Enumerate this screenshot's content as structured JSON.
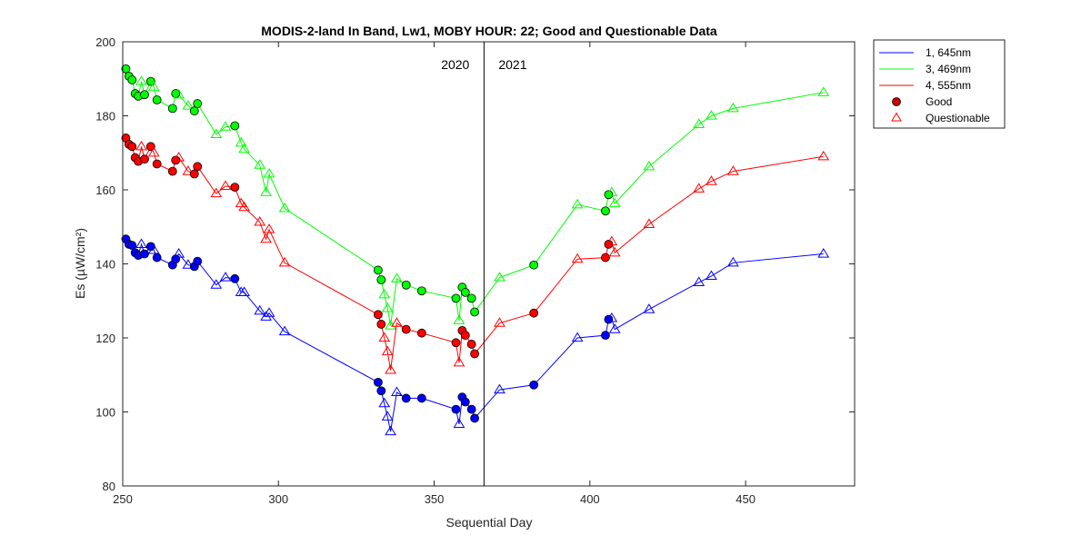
{
  "chart_data": {
    "type": "line",
    "title": "MODIS-2-land In Band,  Lw1, MOBY HOUR: 22;  Good and Questionable Data",
    "xlabel": "Sequential Day",
    "ylabel": "Es (µW/cm²)",
    "xlim": [
      250,
      485
    ],
    "ylim": [
      80,
      200
    ],
    "xticks": [
      250,
      300,
      350,
      400,
      450
    ],
    "yticks": [
      80,
      100,
      120,
      140,
      160,
      180,
      200
    ],
    "grid": false,
    "legend_position": "outside-top-right",
    "year_divider": 366,
    "year_labels": [
      "2020",
      "2021"
    ],
    "series": [
      {
        "name": "1, 645nm",
        "color": "#0000ff",
        "fill": "#0000ff",
        "points": [
          [
            251.0,
            146.7,
            "g"
          ],
          [
            252.0,
            145.3,
            "g"
          ],
          [
            253.0,
            145.0,
            "g"
          ],
          [
            254.0,
            143.0,
            "g"
          ],
          [
            255.0,
            142.3,
            "g"
          ],
          [
            256.0,
            145.3,
            "q"
          ],
          [
            257.0,
            142.7,
            "g"
          ],
          [
            259.0,
            144.7,
            "g"
          ],
          [
            260.0,
            143.7,
            "q"
          ],
          [
            261.0,
            141.7,
            "g"
          ],
          [
            266.0,
            139.7,
            "g"
          ],
          [
            267.0,
            141.3,
            "g"
          ],
          [
            268.0,
            142.7,
            "q"
          ],
          [
            271.0,
            139.7,
            "q"
          ],
          [
            273.0,
            139.3,
            "g"
          ],
          [
            274.0,
            140.7,
            "g"
          ],
          [
            280.0,
            134.3,
            "q"
          ],
          [
            283.0,
            136.3,
            "q"
          ],
          [
            286.0,
            136.0,
            "g"
          ],
          [
            288.0,
            132.3,
            "q"
          ],
          [
            289.0,
            132.3,
            "q"
          ],
          [
            294.0,
            127.3,
            "q"
          ],
          [
            296.0,
            125.7,
            "q"
          ],
          [
            297.0,
            126.7,
            "q"
          ],
          [
            302.0,
            121.7,
            "q"
          ],
          [
            332.0,
            108.0,
            "g"
          ],
          [
            333.0,
            105.7,
            "g"
          ],
          [
            334.0,
            102.3,
            "q"
          ],
          [
            335.0,
            98.7,
            "q"
          ],
          [
            336.0,
            94.7,
            "q"
          ],
          [
            338.0,
            105.3,
            "q"
          ],
          [
            341.0,
            103.7,
            "g"
          ],
          [
            346.0,
            103.7,
            "g"
          ],
          [
            357.0,
            100.7,
            "g"
          ],
          [
            358.0,
            96.7,
            "q"
          ],
          [
            359.0,
            104.0,
            "g"
          ],
          [
            360.0,
            102.7,
            "g"
          ],
          [
            362.0,
            100.7,
            "g"
          ],
          [
            363.0,
            98.3,
            "g"
          ],
          [
            371.0,
            106.0,
            "q"
          ],
          [
            382.0,
            107.3,
            "g"
          ],
          [
            396.0,
            120.0,
            "q"
          ],
          [
            405.0,
            120.7,
            "g"
          ],
          [
            406.0,
            125.0,
            "g"
          ],
          [
            407.0,
            125.3,
            "q"
          ],
          [
            408.0,
            122.3,
            "q"
          ],
          [
            419.0,
            127.7,
            "q"
          ],
          [
            435.0,
            135.0,
            "q"
          ],
          [
            439.0,
            136.7,
            "q"
          ],
          [
            446.0,
            140.3,
            "q"
          ],
          [
            475.0,
            142.7,
            "q"
          ]
        ]
      },
      {
        "name": "3, 469nm",
        "color": "#00ff00",
        "fill": "#00ff00",
        "points": [
          [
            251.0,
            192.7,
            "g"
          ],
          [
            252.0,
            190.7,
            "g"
          ],
          [
            253.0,
            189.7,
            "g"
          ],
          [
            254.0,
            186.0,
            "g"
          ],
          [
            255.0,
            185.3,
            "g"
          ],
          [
            256.0,
            189.3,
            "q"
          ],
          [
            257.0,
            185.7,
            "g"
          ],
          [
            259.0,
            189.3,
            "g"
          ],
          [
            260.0,
            187.7,
            "q"
          ],
          [
            261.0,
            184.3,
            "g"
          ],
          [
            266.0,
            182.0,
            "g"
          ],
          [
            267.0,
            186.0,
            "g"
          ],
          [
            268.0,
            185.7,
            "q"
          ],
          [
            271.0,
            182.7,
            "q"
          ],
          [
            273.0,
            181.3,
            "g"
          ],
          [
            274.0,
            183.3,
            "g"
          ],
          [
            280.0,
            175.0,
            "q"
          ],
          [
            283.0,
            177.0,
            "q"
          ],
          [
            286.0,
            177.3,
            "g"
          ],
          [
            288.0,
            172.7,
            "q"
          ],
          [
            289.0,
            171.0,
            "q"
          ],
          [
            294.0,
            166.7,
            "q"
          ],
          [
            296.0,
            159.3,
            "q"
          ],
          [
            297.0,
            164.3,
            "q"
          ],
          [
            302.0,
            155.0,
            "q"
          ],
          [
            332.0,
            138.3,
            "g"
          ],
          [
            333.0,
            135.7,
            "g"
          ],
          [
            334.0,
            131.7,
            "q"
          ],
          [
            335.0,
            128.0,
            "q"
          ],
          [
            336.0,
            123.3,
            "q"
          ],
          [
            338.0,
            136.0,
            "q"
          ],
          [
            341.0,
            134.3,
            "g"
          ],
          [
            346.0,
            132.7,
            "g"
          ],
          [
            357.0,
            130.7,
            "g"
          ],
          [
            358.0,
            124.7,
            "q"
          ],
          [
            359.0,
            133.7,
            "g"
          ],
          [
            360.0,
            132.3,
            "g"
          ],
          [
            362.0,
            130.7,
            "g"
          ],
          [
            363.0,
            127.0,
            "g"
          ],
          [
            371.0,
            136.3,
            "q"
          ],
          [
            382.0,
            139.7,
            "g"
          ],
          [
            396.0,
            156.0,
            "q"
          ],
          [
            405.0,
            154.3,
            "g"
          ],
          [
            406.0,
            158.7,
            "g"
          ],
          [
            407.0,
            159.3,
            "q"
          ],
          [
            408.0,
            156.3,
            "q"
          ],
          [
            419.0,
            166.3,
            "q"
          ],
          [
            435.0,
            177.7,
            "q"
          ],
          [
            439.0,
            180.0,
            "q"
          ],
          [
            446.0,
            182.0,
            "q"
          ],
          [
            475.0,
            186.3,
            "q"
          ]
        ]
      },
      {
        "name": "4, 555nm",
        "color": "#ff0000",
        "fill": "#ff0000",
        "points": [
          [
            251.0,
            174.0,
            "g"
          ],
          [
            252.0,
            172.3,
            "g"
          ],
          [
            253.0,
            171.7,
            "g"
          ],
          [
            254.0,
            168.7,
            "g"
          ],
          [
            255.0,
            167.7,
            "g"
          ],
          [
            256.0,
            171.7,
            "q"
          ],
          [
            257.0,
            168.3,
            "g"
          ],
          [
            259.0,
            171.7,
            "g"
          ],
          [
            260.0,
            170.0,
            "q"
          ],
          [
            261.0,
            167.0,
            "g"
          ],
          [
            266.0,
            165.0,
            "g"
          ],
          [
            267.0,
            168.0,
            "g"
          ],
          [
            268.0,
            168.7,
            "q"
          ],
          [
            271.0,
            165.0,
            "q"
          ],
          [
            273.0,
            164.3,
            "g"
          ],
          [
            274.0,
            166.3,
            "g"
          ],
          [
            280.0,
            159.0,
            "q"
          ],
          [
            283.0,
            161.0,
            "q"
          ],
          [
            286.0,
            160.7,
            "g"
          ],
          [
            288.0,
            156.3,
            "q"
          ],
          [
            289.0,
            155.3,
            "q"
          ],
          [
            294.0,
            151.3,
            "q"
          ],
          [
            296.0,
            146.7,
            "q"
          ],
          [
            297.0,
            149.3,
            "q"
          ],
          [
            302.0,
            140.3,
            "q"
          ],
          [
            332.0,
            126.3,
            "g"
          ],
          [
            333.0,
            123.7,
            "g"
          ],
          [
            334.0,
            120.0,
            "q"
          ],
          [
            335.0,
            116.3,
            "q"
          ],
          [
            336.0,
            111.3,
            "q"
          ],
          [
            338.0,
            124.0,
            "q"
          ],
          [
            341.0,
            122.3,
            "g"
          ],
          [
            346.0,
            121.3,
            "g"
          ],
          [
            357.0,
            118.7,
            "g"
          ],
          [
            358.0,
            113.3,
            "q"
          ],
          [
            359.0,
            122.0,
            "g"
          ],
          [
            360.0,
            120.7,
            "g"
          ],
          [
            362.0,
            118.3,
            "g"
          ],
          [
            363.0,
            115.7,
            "g"
          ],
          [
            371.0,
            124.0,
            "q"
          ],
          [
            382.0,
            126.7,
            "g"
          ],
          [
            396.0,
            141.3,
            "q"
          ],
          [
            405.0,
            141.7,
            "g"
          ],
          [
            406.0,
            145.3,
            "g"
          ],
          [
            407.0,
            146.0,
            "q"
          ],
          [
            408.0,
            143.0,
            "q"
          ],
          [
            419.0,
            150.7,
            "q"
          ],
          [
            435.0,
            160.3,
            "q"
          ],
          [
            439.0,
            162.3,
            "q"
          ],
          [
            446.0,
            165.0,
            "q"
          ],
          [
            475.0,
            169.0,
            "q"
          ]
        ]
      }
    ],
    "marker_legend": [
      {
        "label": "Good",
        "marker": "circle",
        "fill": "#cc0000",
        "stroke": "#000000"
      },
      {
        "label": "Questionable",
        "marker": "triangle",
        "fill": "none",
        "stroke": "#ff0000"
      }
    ]
  }
}
